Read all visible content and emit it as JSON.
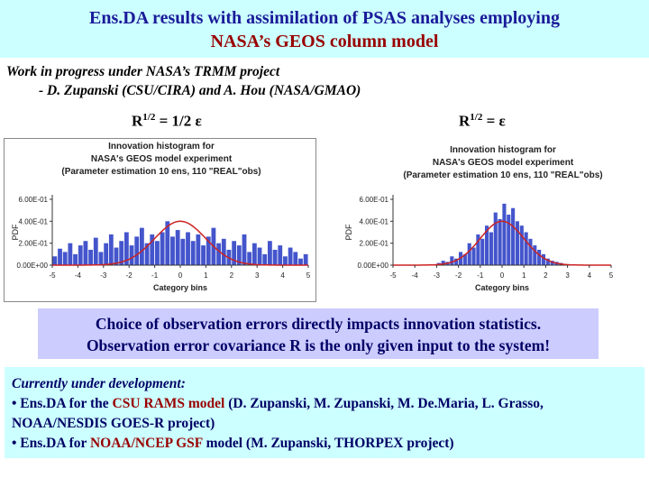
{
  "title": {
    "line1": "Ens.DA results with assimilation of PSAS analyses employing",
    "line2": "NASA’s GEOS column model"
  },
  "wip": {
    "line1": "Work in progress under NASA’s TRMM project",
    "line2": "- D. Zupanski (CSU/CIRA) and A. Hou (NASA/GMAO)"
  },
  "labels": {
    "left_r": "R",
    "left_sup": "1/2",
    "left_rest": " = 1/2 ε",
    "right_r": "R",
    "right_sup": "1/2",
    "right_rest": " = ε"
  },
  "chart_data": [
    {
      "type": "bar",
      "title": "Innovation histogram for NASA's GEOS model experiment (Parameter estimation 10 ens, 110 \"REAL\"obs)",
      "title_lines": [
        "Innovation histogram for",
        "NASA's GEOS model experiment",
        "(Parameter estimation 10 ens, 110 \"REAL\"obs)"
      ],
      "xlabel": "Category bins",
      "ylabel": "PDF",
      "xticks": [
        "-5",
        "-4",
        "-3",
        "-2",
        "-1",
        "0",
        "1",
        "2",
        "3",
        "4",
        "5"
      ],
      "yticks": [
        "0.00E+00",
        "2.00E-01",
        "4.00E-01",
        "6.00E-01"
      ],
      "xlim": [
        -5,
        5
      ],
      "ylim": [
        0,
        0.6
      ],
      "bins": [
        -4.9,
        -4.7,
        -4.5,
        -4.3,
        -4.1,
        -3.9,
        -3.7,
        -3.5,
        -3.3,
        -3.1,
        -2.9,
        -2.7,
        -2.5,
        -2.3,
        -2.1,
        -1.9,
        -1.7,
        -1.5,
        -1.3,
        -1.1,
        -0.9,
        -0.7,
        -0.5,
        -0.3,
        -0.1,
        0.1,
        0.3,
        0.5,
        0.7,
        0.9,
        1.1,
        1.3,
        1.5,
        1.7,
        1.9,
        2.1,
        2.3,
        2.5,
        2.7,
        2.9,
        3.1,
        3.3,
        3.5,
        3.7,
        3.9,
        4.1,
        4.3,
        4.5,
        4.7,
        4.9
      ],
      "values": [
        0.08,
        0.15,
        0.12,
        0.2,
        0.1,
        0.18,
        0.22,
        0.14,
        0.25,
        0.12,
        0.2,
        0.28,
        0.16,
        0.22,
        0.3,
        0.18,
        0.26,
        0.34,
        0.2,
        0.28,
        0.22,
        0.3,
        0.4,
        0.26,
        0.32,
        0.24,
        0.3,
        0.22,
        0.28,
        0.18,
        0.26,
        0.34,
        0.2,
        0.24,
        0.14,
        0.22,
        0.18,
        0.28,
        0.12,
        0.2,
        0.16,
        0.1,
        0.22,
        0.14,
        0.18,
        0.08,
        0.16,
        0.12,
        0.06,
        0.1
      ],
      "curve": "normal",
      "curve_sigma": 1.0,
      "curve_peak": 0.4
    },
    {
      "type": "bar",
      "title": "Innovation histogram for NASA's GEOS model experiment (Parameter estimation 10 ens, 110 \"REAL\"obs)",
      "title_lines": [
        "Innovation histogram for",
        "NASA's GEOS model experiment",
        "(Parameter estimation 10 ens, 110 \"REAL\"obs)"
      ],
      "xlabel": "Category bins",
      "ylabel": "PDF",
      "xticks": [
        "-5",
        "-4",
        "-3",
        "-2",
        "-1",
        "0",
        "1",
        "2",
        "3",
        "4",
        "5"
      ],
      "yticks": [
        "0.00E+00",
        "2.00E-01",
        "4.00E-01",
        "6.00E-01"
      ],
      "xlim": [
        -5,
        5
      ],
      "ylim": [
        0,
        0.6
      ],
      "bins": [
        -2.9,
        -2.7,
        -2.5,
        -2.3,
        -2.1,
        -1.9,
        -1.7,
        -1.5,
        -1.3,
        -1.1,
        -0.9,
        -0.7,
        -0.5,
        -0.3,
        -0.1,
        0.1,
        0.3,
        0.5,
        0.7,
        0.9,
        1.1,
        1.3,
        1.5,
        1.7,
        1.9,
        2.1,
        2.3,
        2.5,
        2.7
      ],
      "values": [
        0.02,
        0.04,
        0.03,
        0.08,
        0.06,
        0.12,
        0.1,
        0.2,
        0.16,
        0.28,
        0.24,
        0.36,
        0.3,
        0.48,
        0.42,
        0.56,
        0.46,
        0.52,
        0.4,
        0.36,
        0.3,
        0.24,
        0.18,
        0.14,
        0.1,
        0.06,
        0.04,
        0.03,
        0.02
      ],
      "curve": "normal",
      "curve_sigma": 1.0,
      "curve_peak": 0.4
    }
  ],
  "callout": {
    "line1": "Choice of observation errors directly impacts innovation statistics.",
    "line2": "Observation error covariance R is the only given input to the system!"
  },
  "dev": {
    "head": "Currently under development:",
    "b1_pre": "• Ens.DA for the ",
    "b1_hl": "CSU RAMS model",
    "b1_post": " (D. Zupanski, M. Zupanski, M. De.Maria, L. Grasso,",
    "b1_cont": "NOAA/NESDIS GOES-R project)",
    "b2_pre": "• Ens.DA for ",
    "b2_hl": "NOAA/NCEP GSF",
    "b2_post": " model (M. Zupanski, THORPEX project)"
  },
  "colors": {
    "bar": "#4455cc",
    "curve": "#cc2222"
  }
}
